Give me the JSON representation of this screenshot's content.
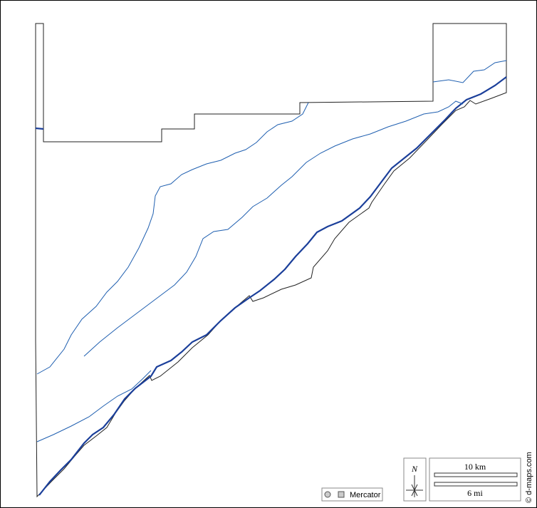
{
  "map": {
    "north": "N",
    "scale_km": "10 km",
    "scale_mi": "6 mi",
    "projection": "Mercator",
    "credit": "© d-maps.com"
  }
}
